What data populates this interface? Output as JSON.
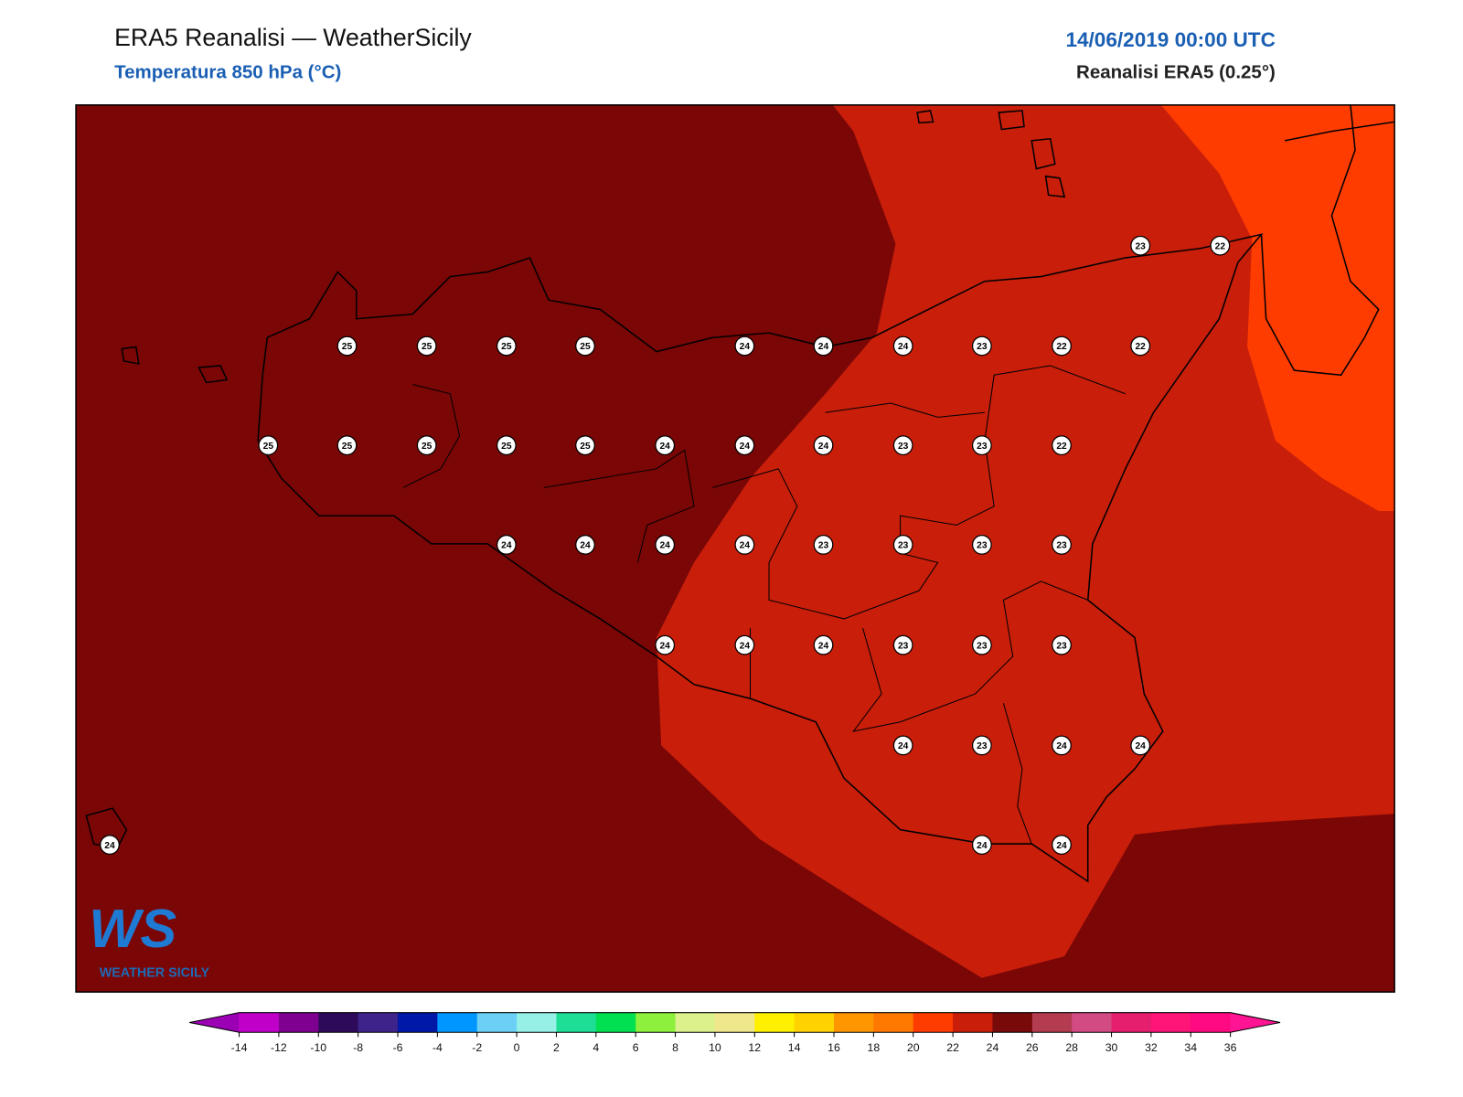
{
  "header": {
    "title": "ERA5 Reanalisi — WeatherSicily",
    "subtitle": "Temperatura 850 hPa (°C)",
    "date": "14/06/2019 00:00 UTC",
    "source": "Reanalisi ERA5 (0.25°)"
  },
  "logo": {
    "mark": "WS",
    "name": "WEATHER SICILY"
  },
  "map": {
    "points": [
      23,
      22,
      25,
      25,
      25,
      25,
      24,
      24,
      24,
      23,
      22,
      22,
      25,
      25,
      25,
      25,
      25,
      24,
      24,
      24,
      23,
      23,
      22,
      24,
      24,
      24,
      24,
      23,
      23,
      23,
      23,
      24,
      24,
      24,
      23,
      23,
      23,
      24,
      23,
      24,
      24,
      24,
      24,
      24
    ]
  },
  "colorbar": {
    "ticks": [
      -14,
      -12,
      -10,
      -8,
      -6,
      -4,
      -2,
      0,
      2,
      4,
      6,
      8,
      10,
      12,
      14,
      16,
      18,
      20,
      22,
      24,
      26,
      28,
      30,
      32,
      34,
      36
    ],
    "colors": [
      "#9c00b4",
      "#c000c8",
      "#7f0090",
      "#2e0b5a",
      "#3d238a",
      "#0018a8",
      "#0096ff",
      "#6ccff6",
      "#96f0e6",
      "#1ede96",
      "#00e050",
      "#8cf03c",
      "#dcf08c",
      "#f0e68c",
      "#fff000",
      "#ffd200",
      "#ff9600",
      "#ff7800",
      "#ff3c00",
      "#c81e0a",
      "#780a0a",
      "#b43c50",
      "#d24b82",
      "#e61e6e",
      "#ff1478",
      "#ff0a82",
      "#ff1493"
    ]
  }
}
